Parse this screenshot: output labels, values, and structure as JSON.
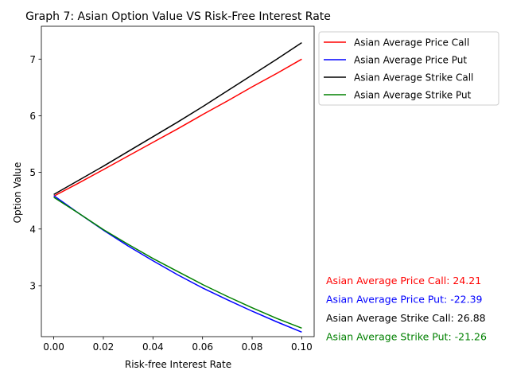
{
  "chart_data": {
    "type": "line",
    "title": "Graph 7: Asian Option Value VS Risk-Free Interest Rate",
    "xlabel": "Risk-free Interest Rate",
    "ylabel": "Option Value",
    "xlim": [
      -0.005,
      0.105
    ],
    "ylim": [
      2.1,
      7.58
    ],
    "xticks": [
      0.0,
      0.02,
      0.04,
      0.06,
      0.08,
      0.1
    ],
    "xtick_labels": [
      "0.00",
      "0.02",
      "0.04",
      "0.06",
      "0.08",
      "0.10"
    ],
    "yticks": [
      3,
      4,
      5,
      6,
      7
    ],
    "ytick_labels": [
      "3",
      "4",
      "5",
      "6",
      "7"
    ],
    "grid": false,
    "legend_position": "outside-top-right",
    "x": [
      0.0,
      0.01,
      0.02,
      0.03,
      0.04,
      0.05,
      0.06,
      0.07,
      0.08,
      0.09,
      0.1
    ],
    "series": [
      {
        "name": "Asian Average Price Call",
        "color": "#ff0000",
        "values": [
          4.58,
          4.81,
          5.05,
          5.29,
          5.53,
          5.77,
          6.02,
          6.26,
          6.51,
          6.75,
          7.0
        ]
      },
      {
        "name": "Asian Average Price Put",
        "color": "#0000ff",
        "values": [
          4.59,
          4.28,
          3.98,
          3.7,
          3.44,
          3.19,
          2.96,
          2.75,
          2.55,
          2.36,
          2.18
        ]
      },
      {
        "name": "Asian Average Strike Call",
        "color": "#000000",
        "values": [
          4.61,
          4.86,
          5.11,
          5.37,
          5.63,
          5.89,
          6.16,
          6.44,
          6.72,
          7.0,
          7.29
        ]
      },
      {
        "name": "Asian Average Strike Put",
        "color": "#008000",
        "values": [
          4.56,
          4.28,
          3.99,
          3.73,
          3.48,
          3.25,
          3.02,
          2.81,
          2.61,
          2.42,
          2.25
        ]
      }
    ],
    "annotations": [
      {
        "text": "Asian Average Price Call: 24.21",
        "color": "#ff0000"
      },
      {
        "text": "Asian Average Price Put: -22.39",
        "color": "#0000ff"
      },
      {
        "text": "Asian Average Strike Call: 26.88",
        "color": "#000000"
      },
      {
        "text": "Asian Average Strike Put: -21.26",
        "color": "#008000"
      }
    ]
  }
}
